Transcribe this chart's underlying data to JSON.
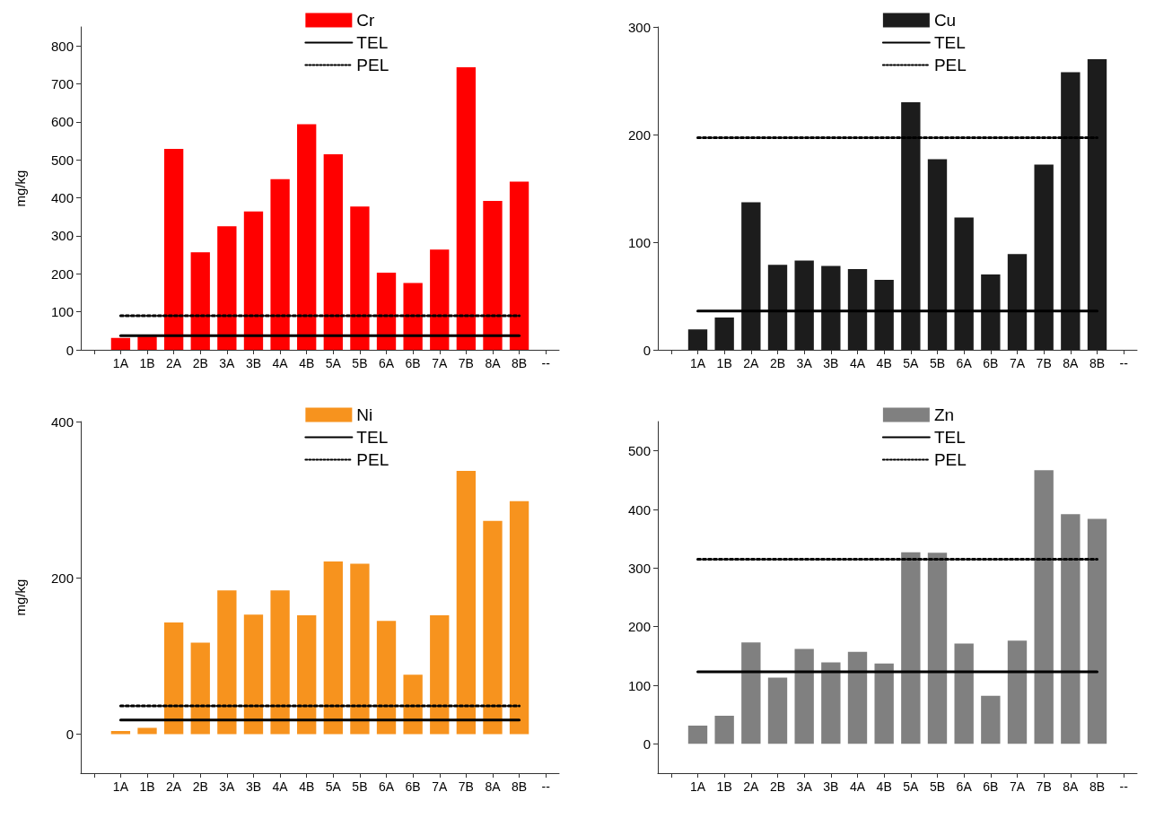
{
  "chart_data": [
    {
      "type": "bar",
      "ylabel": "mg/kg",
      "categories": [
        null,
        "1A",
        "1B",
        "2A",
        "2B",
        "3A",
        "3B",
        "4A",
        "4B",
        "5A",
        "5B",
        "6A",
        "6B",
        "7A",
        "7B",
        "8A",
        "8B",
        "--"
      ],
      "ylim": [
        0,
        850
      ],
      "yticks": [
        0,
        100,
        200,
        300,
        400,
        500,
        600,
        700,
        800
      ],
      "legend": "top",
      "marker": "none",
      "grid": false,
      "series": [
        {
          "name": "Cr",
          "color": "#ff0000",
          "values": [
            null,
            31,
            35,
            529,
            257,
            325,
            364,
            449,
            594,
            515,
            377,
            203,
            176,
            264,
            744,
            392,
            443,
            null
          ]
        },
        {
          "name": "TEL",
          "type": "line",
          "color": "#000000",
          "line_style": "solid",
          "values": [
            null,
            37,
            37,
            37,
            37,
            37,
            37,
            37,
            37,
            37,
            37,
            37,
            37,
            37,
            37,
            37,
            37,
            null
          ]
        },
        {
          "name": "PEL",
          "type": "line",
          "color": "#000000",
          "line_style": "dotted",
          "values": [
            null,
            90,
            90,
            90,
            90,
            90,
            90,
            90,
            90,
            90,
            90,
            90,
            90,
            90,
            90,
            90,
            90,
            null
          ]
        }
      ]
    },
    {
      "type": "bar",
      "categories": [
        null,
        "1A",
        "1B",
        "2A",
        "2B",
        "3A",
        "3B",
        "4A",
        "4B",
        "5A",
        "5B",
        "6A",
        "6B",
        "7A",
        "7B",
        "8A",
        "8B",
        "--"
      ],
      "ylim": [
        0,
        300
      ],
      "yticks": [
        0,
        100,
        200,
        300
      ],
      "legend": "top",
      "marker": "none",
      "grid": false,
      "series": [
        {
          "name": "Cu",
          "color": "#1c1c1c",
          "values": [
            null,
            19,
            30,
            137,
            79,
            83,
            78,
            75,
            65,
            230,
            177,
            123,
            70,
            89,
            172,
            258,
            270,
            null
          ]
        },
        {
          "name": "TEL",
          "type": "line",
          "color": "#000000",
          "line_style": "solid",
          "values": [
            null,
            36,
            36,
            36,
            36,
            36,
            36,
            36,
            36,
            36,
            36,
            36,
            36,
            36,
            36,
            36,
            36,
            null
          ]
        },
        {
          "name": "PEL",
          "type": "line",
          "color": "#000000",
          "line_style": "dotted",
          "values": [
            null,
            197,
            197,
            197,
            197,
            197,
            197,
            197,
            197,
            197,
            197,
            197,
            197,
            197,
            197,
            197,
            197,
            null
          ]
        }
      ]
    },
    {
      "type": "bar",
      "ylabel": "mg/kg",
      "categories": [
        null,
        "1A",
        "1B",
        "2A",
        "2B",
        "3A",
        "3B",
        "4A",
        "4B",
        "5A",
        "5B",
        "6A",
        "6B",
        "7A",
        "7B",
        "8A",
        "8B",
        "--"
      ],
      "ylim": [
        -50,
        400
      ],
      "yticks": [
        0,
        200,
        400
      ],
      "legend": "top",
      "marker": "none",
      "grid": false,
      "series": [
        {
          "name": "Ni",
          "color": "#f7931e",
          "values": [
            null,
            4,
            8,
            143,
            117,
            184,
            153,
            184,
            152,
            221,
            218,
            145,
            76,
            152,
            337,
            273,
            298,
            null
          ]
        },
        {
          "name": "TEL",
          "type": "line",
          "color": "#000000",
          "line_style": "solid",
          "values": [
            null,
            18,
            18,
            18,
            18,
            18,
            18,
            18,
            18,
            18,
            18,
            18,
            18,
            18,
            18,
            18,
            18,
            null
          ]
        },
        {
          "name": "PEL",
          "type": "line",
          "color": "#000000",
          "line_style": "dotted",
          "values": [
            null,
            36,
            36,
            36,
            36,
            36,
            36,
            36,
            36,
            36,
            36,
            36,
            36,
            36,
            36,
            36,
            36,
            null
          ]
        }
      ]
    },
    {
      "type": "bar",
      "categories": [
        null,
        "1A",
        "1B",
        "2A",
        "2B",
        "3A",
        "3B",
        "4A",
        "4B",
        "5A",
        "5B",
        "6A",
        "6B",
        "7A",
        "7B",
        "8A",
        "8B",
        "--"
      ],
      "ylim": [
        -50,
        550
      ],
      "yticks": [
        0,
        100,
        200,
        300,
        400,
        500
      ],
      "legend": "top",
      "marker": "none",
      "grid": false,
      "series": [
        {
          "name": "Zn",
          "color": "#808080",
          "values": [
            null,
            31,
            48,
            173,
            113,
            162,
            139,
            157,
            137,
            327,
            326,
            171,
            82,
            176,
            467,
            392,
            384,
            null
          ]
        },
        {
          "name": "TEL",
          "type": "line",
          "color": "#000000",
          "line_style": "solid",
          "values": [
            null,
            123,
            123,
            123,
            123,
            123,
            123,
            123,
            123,
            123,
            123,
            123,
            123,
            123,
            123,
            123,
            123,
            null
          ]
        },
        {
          "name": "PEL",
          "type": "line",
          "color": "#000000",
          "line_style": "dotted",
          "values": [
            null,
            315,
            315,
            315,
            315,
            315,
            315,
            315,
            315,
            315,
            315,
            315,
            315,
            315,
            315,
            315,
            315,
            null
          ]
        }
      ]
    }
  ]
}
